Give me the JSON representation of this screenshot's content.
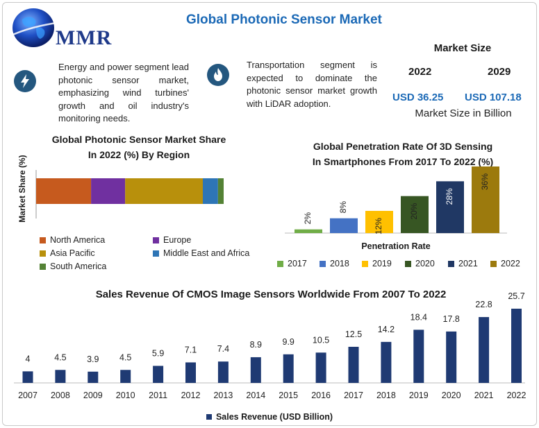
{
  "header": {
    "logo_text": "MMR",
    "title": "Global Photonic Sensor Market"
  },
  "info": [
    {
      "icon": "lightning-icon",
      "text": "Energy and power segment lead photonic sensor market, emphasizing wind turbines' growth and oil industry's monitoring needs."
    },
    {
      "icon": "flame-icon",
      "text": "Transportation segment is expected to dominate the photonic sensor market growth with LiDAR adoption."
    }
  ],
  "market_size": {
    "title": "Market Size",
    "year_start": "2022",
    "year_end": "2029",
    "value_start": "USD 36.25",
    "value_end": "USD 107.18",
    "subtitle": "Market Size in Billion"
  },
  "colors": {
    "title_blue": "#1b69b6",
    "icon_bg": "#24577f",
    "cmos_bar": "#1f3a73"
  },
  "chart_data": [
    {
      "type": "bar",
      "stacked": true,
      "orientation": "horizontal",
      "title_line1": "Global Photonic Sensor Market Share",
      "title_line2": "In 2022 (%) By Region",
      "ylabel": "Market Share (%)",
      "series": [
        {
          "name": "North America",
          "value": 29,
          "color": "#c65a1e"
        },
        {
          "name": "Europe",
          "value": 18,
          "color": "#7030a0"
        },
        {
          "name": "Asia Pacific",
          "value": 41,
          "color": "#b8900c"
        },
        {
          "name": "Middle East and Africa",
          "value": 8,
          "color": "#2e75b6"
        },
        {
          "name": "South America",
          "value": 3,
          "color": "#548235"
        }
      ]
    },
    {
      "type": "bar",
      "title_line1": "Global Penetration Rate Of 3D Sensing",
      "title_line2": "In Smartphones From 2017 To 2022 (%)",
      "xlabel": "Penetration Rate",
      "ylim": [
        0,
        36
      ],
      "bars": [
        {
          "name": "2017",
          "value": 2,
          "label": "2%",
          "color": "#70ad47"
        },
        {
          "name": "2018",
          "value": 8,
          "label": "8%",
          "color": "#4472c4"
        },
        {
          "name": "2019",
          "value": 12,
          "label": "12%",
          "color": "#ffc000"
        },
        {
          "name": "2020",
          "value": 20,
          "label": "20%",
          "color": "#375623"
        },
        {
          "name": "2021",
          "value": 28,
          "label": "28%",
          "color": "#203864"
        },
        {
          "name": "2022",
          "value": 36,
          "label": "36%",
          "color": "#9c7a0d"
        }
      ]
    },
    {
      "type": "bar",
      "title": "Sales Revenue Of CMOS Image Sensors Worldwide From 2007 To 2022",
      "legend": "Sales Revenue (USD Billion)",
      "categories": [
        "2007",
        "2008",
        "2009",
        "2010",
        "2011",
        "2012",
        "2013",
        "2014",
        "2015",
        "2016",
        "2017",
        "2018",
        "2019",
        "2020",
        "2021",
        "2022"
      ],
      "values": [
        4,
        4.5,
        3.9,
        4.5,
        5.9,
        7.1,
        7.4,
        8.9,
        9.9,
        10.5,
        12.5,
        14.2,
        18.4,
        17.8,
        22.8,
        25.7
      ],
      "labels": [
        "4",
        "4.5",
        "3.9",
        "4.5",
        "5.9",
        "7.1",
        "7.4",
        "8.9",
        "9.9",
        "10.5",
        "12.5",
        "14.2",
        "18.4",
        "17.8",
        "22.8",
        "25.7"
      ],
      "ylim": [
        0,
        25.7
      ]
    }
  ]
}
